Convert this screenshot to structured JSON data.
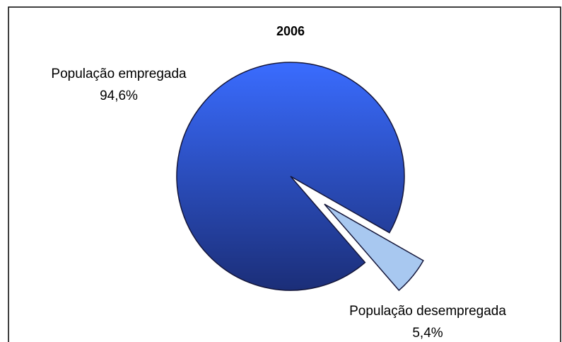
{
  "chart_data": {
    "type": "pie",
    "title": "2006",
    "categories": [
      "População empregada",
      "População desempregada"
    ],
    "values": [
      94.6,
      5.4
    ],
    "value_labels": [
      "94,6%",
      "5,4%"
    ],
    "colors": [
      "#2f5ff0",
      "#a8c8f0"
    ],
    "exploded": [
      false,
      true
    ]
  }
}
